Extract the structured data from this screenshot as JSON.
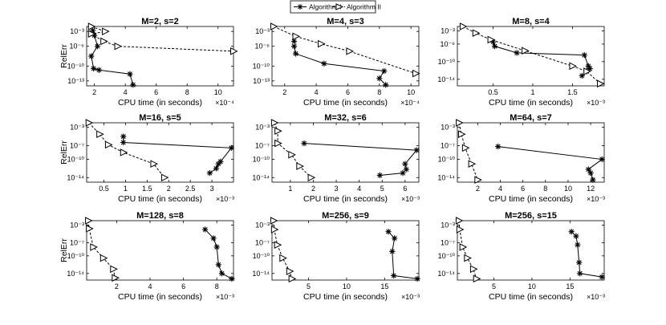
{
  "legend": {
    "series1": "Algorithm I",
    "series2": "Algorithm II"
  },
  "chart_data": [
    {
      "type": "line",
      "title": "M=2,   s=2",
      "xlabel": "CPU time (in seconds)",
      "xexp": "×10⁻⁴",
      "ylabel": "RelErr",
      "xlim": [
        1.5,
        11
      ],
      "xticks": [
        2,
        4,
        6,
        8,
        10
      ],
      "xtick_labels": [
        "2",
        "4",
        "6",
        "8",
        "10"
      ],
      "ylim": [
        -14,
        -2
      ],
      "yticks": [
        -3,
        -6,
        -10,
        -13
      ],
      "ytick_labels": [
        "10⁻³",
        "10⁻⁶",
        "10⁻¹⁰",
        "10⁻¹³"
      ],
      "series": [
        {
          "name": "Algorithm I",
          "x": [
            1.9,
            2.0,
            2.2,
            1.8,
            1.95,
            2.3,
            4.3,
            4.5
          ],
          "y": [
            -2.8,
            -3.8,
            -6.0,
            -8.0,
            -10.5,
            -10.8,
            -11.6,
            -13.8
          ]
        },
        {
          "name": "Algorithm II",
          "x": [
            1.8,
            2.7,
            1.8,
            2.6,
            3.5,
            11.0
          ],
          "y": [
            -2.0,
            -3.0,
            -3.5,
            -5.0,
            -6.0,
            -7.0
          ]
        }
      ]
    },
    {
      "type": "line",
      "title": "M=4,   s=3",
      "xlabel": "CPU time (in seconds)",
      "xexp": "×10⁻⁴",
      "ylabel": "RelErr",
      "xlim": [
        1.2,
        10.5
      ],
      "xticks": [
        2,
        4,
        6,
        8,
        10
      ],
      "xtick_labels": [
        "2",
        "4",
        "6",
        "8",
        "10"
      ],
      "ylim": [
        -14,
        -2
      ],
      "yticks": [
        -3,
        -6,
        -10,
        -13
      ],
      "ytick_labels": [
        "10⁻³",
        "10⁻⁶",
        "10⁻¹⁰",
        "10⁻¹³"
      ],
      "series": [
        {
          "name": "Algorithm I",
          "x": [
            2.6,
            2.6,
            2.7,
            4.5,
            8.3,
            8.0,
            8.4
          ],
          "y": [
            -5.0,
            -6.0,
            -7.5,
            -9.5,
            -11.0,
            -12.5,
            -13.8
          ]
        },
        {
          "name": "Algorithm II",
          "x": [
            1.3,
            2.7,
            4.3,
            6.1,
            10.3
          ],
          "y": [
            -2.0,
            -4.0,
            -5.5,
            -7.0,
            -11.5
          ]
        }
      ]
    },
    {
      "type": "line",
      "title": "M=8,   s=4",
      "xlabel": "CPU time (in seconds)",
      "xexp": "×10⁻³",
      "ylabel": "RelErr",
      "xlim": [
        0.05,
        1.9
      ],
      "xticks": [
        0.5,
        1,
        1.5
      ],
      "xtick_labels": [
        "0.5",
        "1",
        "1.5"
      ],
      "ylim": [
        -15.5,
        -2
      ],
      "yticks": [
        -3,
        -6,
        -10,
        -14
      ],
      "ytick_labels": [
        "10⁻³",
        "10⁻⁶",
        "10⁻¹⁰",
        "10⁻¹⁴"
      ],
      "series": [
        {
          "name": "Algorithm I",
          "x": [
            0.5,
            0.52,
            0.8,
            1.65,
            1.7,
            1.72,
            1.68,
            1.62
          ],
          "y": [
            -5.5,
            -6.5,
            -8.0,
            -8.5,
            -11.0,
            -11.6,
            -12.2,
            -13.2
          ]
        },
        {
          "name": "Algorithm II",
          "x": [
            0.12,
            0.28,
            0.47,
            0.9,
            1.5,
            1.68,
            1.85
          ],
          "y": [
            -2.0,
            -3.5,
            -5.0,
            -7.5,
            -11.0,
            -12.2,
            -15.0
          ]
        }
      ]
    },
    {
      "type": "line",
      "title": "M=16,   s=5",
      "xlabel": "CPU time (in seconds)",
      "xexp": "×10⁻³",
      "ylabel": "RelErr",
      "xlim": [
        0.1,
        3.5
      ],
      "xticks": [
        0.5,
        1,
        1.5,
        2,
        2.5,
        3
      ],
      "xtick_labels": [
        "0.5",
        "1",
        "1.5",
        "2",
        "2.5",
        "3"
      ],
      "ylim": [
        -15,
        -2
      ],
      "yticks": [
        -3,
        -7,
        -10,
        -14
      ],
      "ytick_labels": [
        "10⁻³",
        "10⁻⁷",
        "10⁻¹⁰",
        "10⁻¹⁴"
      ],
      "series": [
        {
          "name": "Algorithm I",
          "x": [
            0.95,
            0.95,
            3.45,
            3.2,
            3.15,
            3.1,
            2.95
          ],
          "y": [
            -5.0,
            -6.3,
            -7.5,
            -10.5,
            -11.0,
            -12.0,
            -13.0
          ]
        },
        {
          "name": "Algorithm II",
          "x": [
            0.15,
            0.4,
            0.6,
            0.95,
            1.65,
            1.9
          ],
          "y": [
            -2.0,
            -4.5,
            -6.8,
            -8.5,
            -11.0,
            -14.0
          ]
        }
      ]
    },
    {
      "type": "line",
      "title": "M=32,   s=6",
      "xlabel": "CPU time (in seconds)",
      "xexp": "×10⁻³",
      "ylabel": "RelErr",
      "xlim": [
        0.2,
        6.6
      ],
      "xticks": [
        1,
        2,
        3,
        4,
        5,
        6
      ],
      "xtick_labels": [
        "1",
        "2",
        "3",
        "4",
        "5",
        "6"
      ],
      "ylim": [
        -15,
        -2
      ],
      "yticks": [
        -3,
        -7,
        -10,
        -14
      ],
      "ytick_labels": [
        "10⁻³",
        "10⁻⁷",
        "10⁻¹⁰",
        "10⁻¹⁴"
      ],
      "series": [
        {
          "name": "Algorithm I",
          "x": [
            1.6,
            6.5,
            6.0,
            6.05,
            5.9,
            4.9
          ],
          "y": [
            -6.5,
            -8.0,
            -11.0,
            -12.2,
            -13.0,
            -13.5
          ]
        },
        {
          "name": "Algorithm II",
          "x": [
            0.3,
            0.45,
            0.45,
            1.05,
            1.4,
            1.9
          ],
          "y": [
            -2.0,
            -3.8,
            -6.5,
            -9.0,
            -11.5,
            -14.0
          ]
        }
      ]
    },
    {
      "type": "line",
      "title": "M=64,   s=7",
      "xlabel": "CPU time (in seconds)",
      "xexp": "×10⁻³",
      "ylabel": "RelErr",
      "xlim": [
        0.2,
        13.2
      ],
      "xticks": [
        2,
        4,
        6,
        8,
        10,
        12
      ],
      "xtick_labels": [
        "2",
        "4",
        "6",
        "8",
        "10",
        "12"
      ],
      "ylim": [
        -15,
        -2
      ],
      "yticks": [
        -3,
        -7,
        -10,
        -14
      ],
      "ytick_labels": [
        "10⁻³",
        "10⁻⁷",
        "10⁻¹⁰",
        "10⁻¹⁴"
      ],
      "series": [
        {
          "name": "Algorithm I",
          "x": [
            3.8,
            13.0,
            11.8,
            12.0,
            12.2
          ],
          "y": [
            -7.2,
            -10.0,
            -12.2,
            -13.0,
            -14.5
          ]
        },
        {
          "name": "Algorithm II",
          "x": [
            0.35,
            0.55,
            0.9,
            1.45,
            2.0
          ],
          "y": [
            -2.0,
            -4.5,
            -7.5,
            -11.0,
            -14.5
          ]
        }
      ]
    },
    {
      "type": "line",
      "title": "M=128,   s=8",
      "xlabel": "CPU time (in seconds)",
      "xexp": "×10⁻³",
      "ylabel": "RelErr",
      "xlim": [
        0.2,
        9.0
      ],
      "xticks": [
        2,
        4,
        6,
        8
      ],
      "xtick_labels": [
        "2",
        "4",
        "6",
        "8"
      ],
      "ylim": [
        -15.5,
        -2
      ],
      "yticks": [
        -3,
        -7,
        -10,
        -14
      ],
      "ytick_labels": [
        "10⁻³",
        "10⁻⁷",
        "10⁻¹⁰",
        "10⁻¹⁴"
      ],
      "series": [
        {
          "name": "Algorithm I",
          "x": [
            7.3,
            7.8,
            8.0,
            8.1,
            8.3,
            8.9
          ],
          "y": [
            -4.0,
            -6.0,
            -8.0,
            -12.0,
            -14.0,
            -15.2
          ]
        },
        {
          "name": "Algorithm II",
          "x": [
            0.3,
            0.35,
            0.6,
            1.2,
            1.8,
            1.9
          ],
          "y": [
            -2.0,
            -3.8,
            -8.0,
            -10.5,
            -13.0,
            -15.0
          ]
        }
      ]
    },
    {
      "type": "line",
      "title": "M=256,   s=9",
      "xlabel": "CPU time (in seconds)",
      "xexp": "×10⁻³",
      "ylabel": "RelErr",
      "xlim": [
        0.2,
        19.5
      ],
      "xticks": [
        5,
        10,
        15
      ],
      "xtick_labels": [
        "5",
        "10",
        "15"
      ],
      "ylim": [
        -15.5,
        -2
      ],
      "yticks": [
        -3,
        -7,
        -10,
        -14
      ],
      "ytick_labels": [
        "10⁻³",
        "10⁻⁷",
        "10⁻¹⁰",
        "10⁻¹⁴"
      ],
      "series": [
        {
          "name": "Algorithm I",
          "x": [
            15.5,
            16.3,
            16.0,
            16.2,
            19.3
          ],
          "y": [
            -4.5,
            -6.0,
            -9.0,
            -14.5,
            -15.2
          ]
        },
        {
          "name": "Algorithm II",
          "x": [
            0.4,
            0.5,
            0.9,
            1.6,
            2.5,
            2.8
          ],
          "y": [
            -2.0,
            -4.0,
            -7.5,
            -10.5,
            -13.5,
            -15.2
          ]
        }
      ]
    },
    {
      "type": "line",
      "title": "M=256,   s=15",
      "xlabel": "CPU time (in seconds)",
      "xexp": "×10⁻³",
      "ylabel": "RelErr",
      "xlim": [
        0.2,
        19.5
      ],
      "xticks": [
        5,
        10,
        15
      ],
      "xtick_labels": [
        "5",
        "10",
        "15"
      ],
      "ylim": [
        -15.5,
        -2
      ],
      "yticks": [
        -3,
        -7,
        -10,
        -14
      ],
      "ytick_labels": [
        "10⁻³",
        "10⁻⁷",
        "10⁻¹⁰",
        "10⁻¹⁴"
      ],
      "series": [
        {
          "name": "Algorithm I",
          "x": [
            15.2,
            15.8,
            16.0,
            16.2,
            16.3,
            19.2
          ],
          "y": [
            -4.5,
            -5.5,
            -7.5,
            -11.5,
            -14.0,
            -14.8
          ]
        },
        {
          "name": "Algorithm II",
          "x": [
            0.4,
            0.5,
            0.9,
            1.5,
            2.3,
            2.7
          ],
          "y": [
            -2.0,
            -4.0,
            -8.0,
            -10.5,
            -13.0,
            -15.2
          ]
        }
      ]
    }
  ]
}
